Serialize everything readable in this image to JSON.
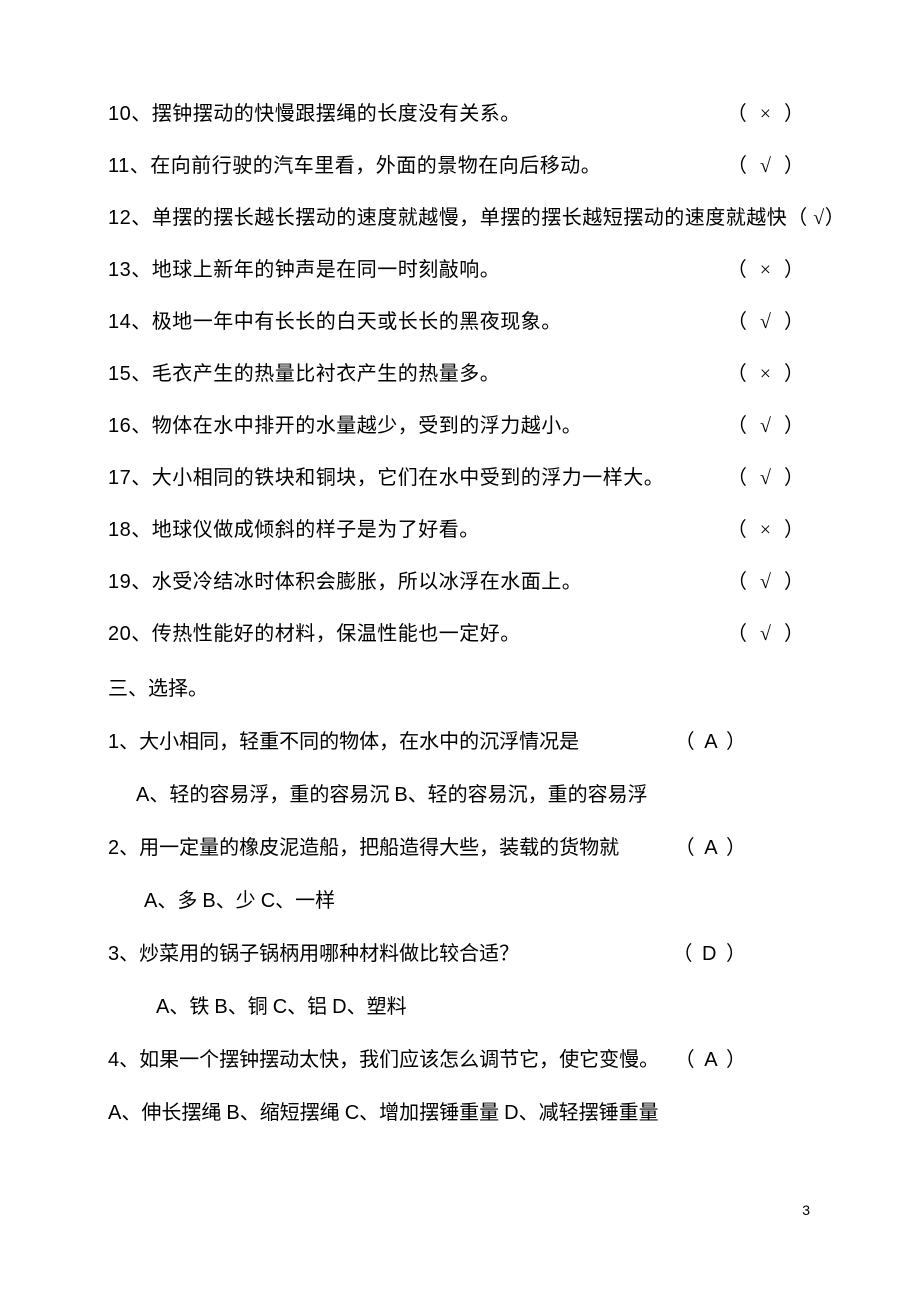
{
  "page_number": "3",
  "true_false": [
    {
      "num": "10",
      "text": "、摆钟摆动的快慢跟摆绳的长度没有关系。",
      "mark": "（  ×  ）"
    },
    {
      "num": "11",
      "text": "、在向前行驶的汽车里看，外面的景物在向后移动。",
      "mark": "（  √  ）"
    },
    {
      "num": "12",
      "text": "、单摆的摆长越长摆动的速度就越慢，单摆的摆长越短摆动的速度就越快（ √）"
    },
    {
      "num": "13",
      "text": "、地球上新年的钟声是在同一时刻敲响。",
      "mark": "（  ×  ）"
    },
    {
      "num": "14",
      "text": "、极地一年中有长长的白天或长长的黑夜现象。",
      "mark": "（  √  ）"
    },
    {
      "num": "15",
      "text": "、毛衣产生的热量比衬衣产生的热量多。",
      "mark": "（  ×  ）"
    },
    {
      "num": "16",
      "text": "、物体在水中排开的水量越少，受到的浮力越小。",
      "mark": "（  √  ）"
    },
    {
      "num": "17",
      "text": "、大小相同的铁块和铜块，它们在水中受到的浮力一样大。",
      "mark": "（  √  ）"
    },
    {
      "num": "18",
      "text": "、地球仪做成倾斜的样子是为了好看。",
      "mark": "（  ×  ）"
    },
    {
      "num": "19",
      "text": "、水受冷结冰时体积会膨胀，所以冰浮在水面上。",
      "mark": "（  √  ）"
    },
    {
      "num": "20",
      "text": "、传热性能好的材料，保温性能也一定好。",
      "mark": "（  √  ）"
    }
  ],
  "section_title": "三、选择。",
  "mc": [
    {
      "num": "1",
      "stem": "、大小相同，轻重不同的物体，在水中的沉浮情况是",
      "answer": "（   A   ）",
      "options": "A、轻的容易浮，重的容易沉    B、轻的容易沉，重的容易浮",
      "indent": 28
    },
    {
      "num": "2",
      "stem": "、用一定量的橡皮泥造船，把船造得大些，装载的货物就",
      "answer": "（   A    ）",
      "options": "A、多             B、少          C、一样",
      "indent": 36
    },
    {
      "num": "3",
      "stem": "、炒菜用的锅子锅柄用哪种材料做比较合适？",
      "answer": "（    D   ）",
      "options": "A、铁        B、铜        C、铝       D、塑料",
      "indent": 48
    },
    {
      "num": "4",
      "stem": "、如果一个摆钟摆动太快，我们应该怎么调节它，使它变慢。",
      "answer": "（   A    ）",
      "options": "A、伸长摆绳       B、缩短摆绳      C、增加摆锤重量      D、减轻摆锤重量",
      "indent": 0
    }
  ]
}
